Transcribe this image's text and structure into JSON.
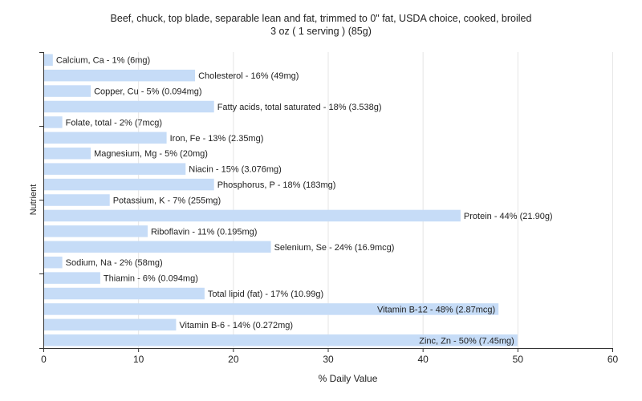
{
  "chart_data": {
    "type": "bar",
    "orientation": "horizontal",
    "title": "Beef, chuck, top blade, separable lean and fat, trimmed to 0\" fat, USDA choice, cooked, broiled",
    "subtitle": "3 oz ( 1 serving ) (85g)",
    "xlabel": "% Daily Value",
    "ylabel": "Nutrient",
    "xlim": [
      0,
      60
    ],
    "xticks": [
      0,
      10,
      20,
      30,
      40,
      50,
      60
    ],
    "grid": true,
    "bar_color": "#c6dcf7",
    "categories": [
      "Calcium, Ca",
      "Cholesterol",
      "Copper, Cu",
      "Fatty acids, total saturated",
      "Folate, total",
      "Iron, Fe",
      "Magnesium, Mg",
      "Niacin",
      "Phosphorus, P",
      "Potassium, K",
      "Protein",
      "Riboflavin",
      "Selenium, Se",
      "Sodium, Na",
      "Thiamin",
      "Total lipid (fat)",
      "Vitamin B-12",
      "Vitamin B-6",
      "Zinc, Zn"
    ],
    "values": [
      1,
      16,
      5,
      18,
      2,
      13,
      5,
      15,
      18,
      7,
      44,
      11,
      24,
      2,
      6,
      17,
      48,
      14,
      50
    ],
    "labels": [
      "Calcium, Ca - 1% (6mg)",
      "Cholesterol - 16% (49mg)",
      "Copper, Cu - 5% (0.094mg)",
      "Fatty acids, total saturated - 18% (3.538g)",
      "Folate, total - 2% (7mcg)",
      "Iron, Fe - 13% (2.35mg)",
      "Magnesium, Mg - 5% (20mg)",
      "Niacin - 15% (3.076mg)",
      "Phosphorus, P - 18% (183mg)",
      "Potassium, K - 7% (255mg)",
      "Protein - 44% (21.90g)",
      "Riboflavin - 11% (0.195mg)",
      "Selenium, Se - 24% (16.9mcg)",
      "Sodium, Na - 2% (58mg)",
      "Thiamin - 6% (0.094mg)",
      "Total lipid (fat) - 17% (10.99g)",
      "Vitamin B-12 - 48% (2.87mcg)",
      "Vitamin B-6 - 14% (0.272mg)",
      "Zinc, Zn - 50% (7.45mg)"
    ]
  }
}
